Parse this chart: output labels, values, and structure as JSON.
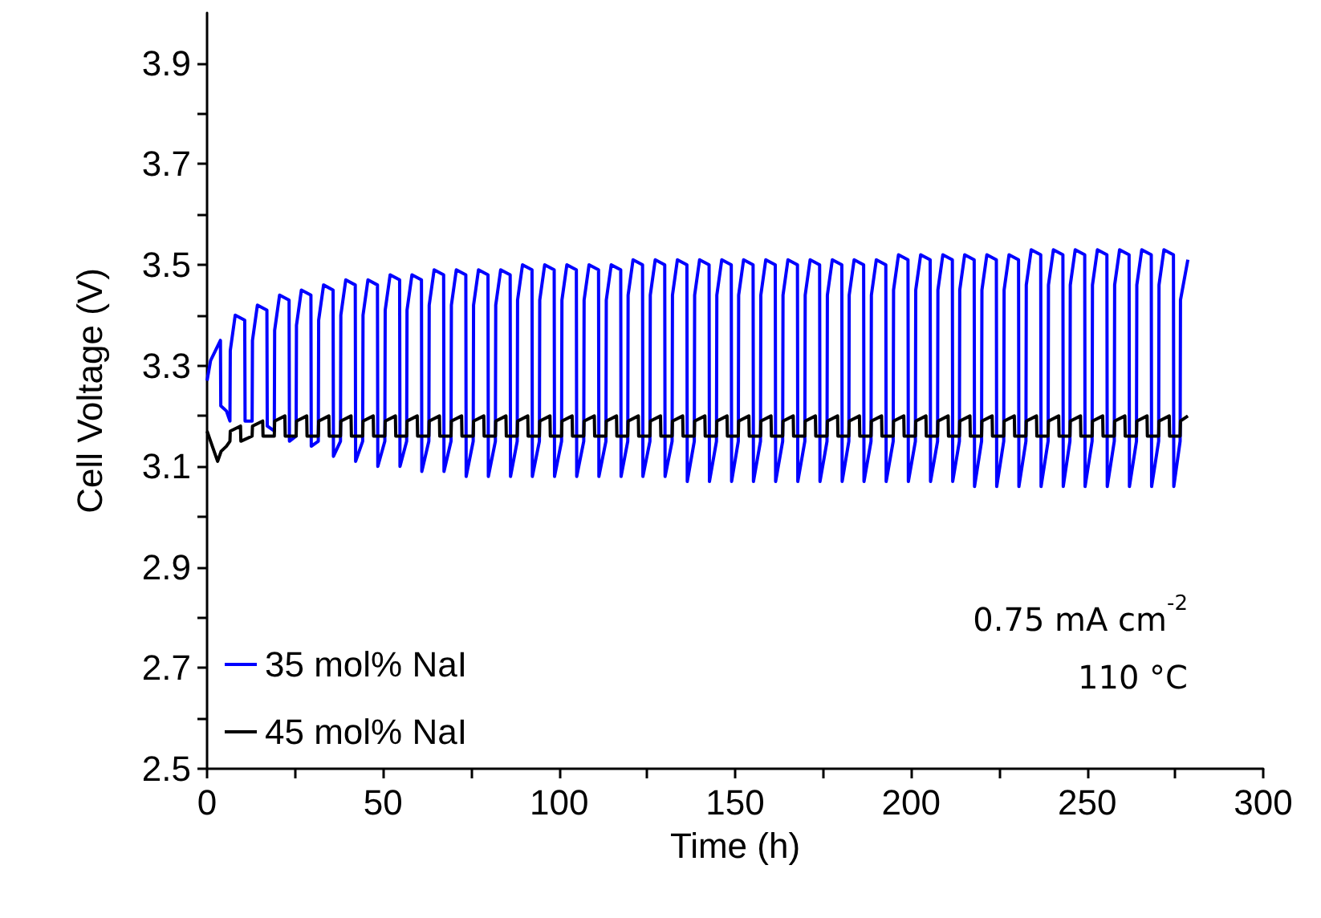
{
  "chart_data": {
    "type": "line",
    "xlabel": "Time (h)",
    "ylabel": "Cell Voltage (V)",
    "xlim": [
      0,
      300
    ],
    "ylim": [
      2.5,
      4.0
    ],
    "xticks": [
      0,
      {
        "value": 25,
        "label": null
      },
      50,
      {
        "value": 75,
        "label": null
      },
      100,
      {
        "value": 125,
        "label": null
      },
      150,
      {
        "value": 175,
        "label": null
      },
      200,
      {
        "value": 225,
        "label": null
      },
      250,
      {
        "value": 275,
        "label": null
      },
      300
    ],
    "yticks": [
      2.5,
      {
        "value": 2.6,
        "label": null
      },
      2.7,
      {
        "value": 2.8,
        "label": null
      },
      2.9,
      {
        "value": 3.0,
        "label": null
      },
      3.1,
      {
        "value": 3.2,
        "label": null
      },
      3.3,
      {
        "value": 3.4,
        "label": null
      },
      3.5,
      {
        "value": 3.6,
        "label": null
      },
      3.7,
      {
        "value": 3.8,
        "label": null
      },
      3.9
    ],
    "grid": false,
    "legend": "bottom left",
    "marker": "none",
    "line_style": "solid",
    "annotations": [
      "0.75 mA cm$^{-2}$",
      "110 °C"
    ],
    "series": [
      {
        "name": "35 mol% NaI",
        "color": "#0000ff",
        "x": [
          0,
          1,
          3.8,
          3.9,
          5.5,
          6.5,
          6.6,
          8.0,
          10.7,
          10.8,
          12.8,
          12.9,
          14.3,
          17.0,
          17.1,
          19.1,
          19.2,
          20.6,
          23.3,
          23.4,
          25.3,
          25.4,
          26.8,
          29.5,
          29.6,
          31.6,
          31.7,
          33.1,
          35.8,
          35.9,
          37.9,
          38.0,
          39.4,
          42.1,
          42.2,
          44.2,
          44.3,
          45.7,
          48.4,
          48.5,
          50.5,
          50.6,
          52.0,
          54.7,
          54.8,
          56.7,
          56.8,
          58.2,
          60.9,
          61.0,
          63.0,
          63.1,
          64.5,
          67.2,
          67.3,
          69.3,
          69.4,
          70.8,
          73.5,
          73.6,
          75.6,
          75.7,
          77.1,
          79.8,
          79.9,
          81.9,
          82.0,
          83.4,
          86.1,
          86.2,
          88.1,
          88.2,
          89.6,
          92.3,
          92.4,
          94.4,
          94.5,
          95.9,
          98.6,
          98.7,
          100.7,
          100.8,
          102.2,
          104.9,
          105.0,
          107.0,
          107.1,
          108.5,
          111.2,
          111.3,
          113.3,
          113.4,
          114.8,
          117.5,
          117.6,
          119.5,
          119.6,
          121.0,
          123.7,
          123.8,
          125.8,
          125.9,
          127.3,
          130.0,
          130.1,
          132.1,
          132.2,
          133.6,
          136.3,
          136.4,
          138.4,
          138.5,
          139.9,
          142.6,
          142.7,
          144.7,
          144.8,
          146.2,
          148.9,
          149.0,
          150.9,
          151.0,
          152.4,
          155.1,
          155.2,
          157.2,
          157.3,
          158.7,
          161.4,
          161.5,
          163.5,
          163.6,
          165.0,
          167.7,
          167.8,
          169.8,
          169.9,
          171.3,
          174.0,
          174.1,
          176.1,
          176.2,
          177.6,
          180.3,
          180.4,
          182.3,
          182.4,
          183.8,
          186.5,
          186.6,
          188.6,
          188.7,
          190.1,
          192.8,
          192.9,
          194.9,
          195.0,
          196.4,
          199.1,
          199.2,
          201.2,
          201.3,
          202.7,
          205.4,
          205.5,
          207.5,
          207.6,
          209.0,
          211.7,
          211.8,
          213.7,
          213.8,
          215.2,
          217.9,
          218.0,
          220.0,
          220.1,
          221.5,
          224.2,
          224.3,
          226.3,
          226.4,
          227.8,
          230.5,
          230.6,
          232.6,
          232.7,
          234.1,
          236.8,
          236.9,
          238.9,
          239.0,
          240.4,
          243.1,
          243.2,
          245.1,
          245.2,
          246.6,
          249.3,
          249.4,
          251.4,
          251.5,
          252.9,
          255.6,
          255.7,
          257.7,
          257.8,
          259.2,
          261.9,
          262.0,
          264.0,
          264.1,
          265.5,
          268.2,
          268.3,
          270.3,
          270.4,
          271.8,
          274.5,
          274.6,
          276.4,
          276.5,
          278.6
        ],
        "values": [
          3.27,
          3.31,
          3.35,
          3.22,
          3.21,
          3.19,
          3.33,
          3.4,
          3.39,
          3.19,
          3.19,
          3.35,
          3.42,
          3.41,
          3.18,
          3.17,
          3.37,
          3.44,
          3.43,
          3.15,
          3.16,
          3.38,
          3.45,
          3.44,
          3.14,
          3.15,
          3.39,
          3.46,
          3.45,
          3.12,
          3.15,
          3.4,
          3.47,
          3.46,
          3.11,
          3.15,
          3.4,
          3.47,
          3.46,
          3.1,
          3.15,
          3.41,
          3.48,
          3.47,
          3.1,
          3.15,
          3.41,
          3.48,
          3.47,
          3.09,
          3.15,
          3.42,
          3.49,
          3.48,
          3.09,
          3.15,
          3.42,
          3.49,
          3.48,
          3.08,
          3.15,
          3.42,
          3.49,
          3.48,
          3.08,
          3.15,
          3.42,
          3.49,
          3.48,
          3.08,
          3.15,
          3.43,
          3.5,
          3.49,
          3.08,
          3.15,
          3.43,
          3.5,
          3.49,
          3.08,
          3.15,
          3.43,
          3.5,
          3.49,
          3.08,
          3.15,
          3.43,
          3.5,
          3.49,
          3.08,
          3.15,
          3.43,
          3.5,
          3.49,
          3.08,
          3.15,
          3.44,
          3.51,
          3.5,
          3.08,
          3.15,
          3.44,
          3.51,
          3.5,
          3.08,
          3.15,
          3.44,
          3.51,
          3.5,
          3.07,
          3.15,
          3.44,
          3.51,
          3.5,
          3.07,
          3.15,
          3.44,
          3.51,
          3.5,
          3.07,
          3.15,
          3.44,
          3.51,
          3.5,
          3.07,
          3.15,
          3.44,
          3.51,
          3.5,
          3.07,
          3.15,
          3.44,
          3.51,
          3.5,
          3.07,
          3.15,
          3.44,
          3.51,
          3.5,
          3.07,
          3.15,
          3.44,
          3.51,
          3.5,
          3.07,
          3.15,
          3.44,
          3.51,
          3.5,
          3.07,
          3.15,
          3.44,
          3.51,
          3.5,
          3.07,
          3.15,
          3.45,
          3.52,
          3.51,
          3.07,
          3.15,
          3.45,
          3.52,
          3.51,
          3.07,
          3.15,
          3.45,
          3.52,
          3.51,
          3.07,
          3.15,
          3.45,
          3.52,
          3.51,
          3.06,
          3.15,
          3.45,
          3.52,
          3.51,
          3.06,
          3.15,
          3.45,
          3.52,
          3.51,
          3.06,
          3.15,
          3.46,
          3.53,
          3.52,
          3.06,
          3.15,
          3.46,
          3.53,
          3.52,
          3.06,
          3.15,
          3.46,
          3.53,
          3.52,
          3.06,
          3.15,
          3.46,
          3.53,
          3.52,
          3.06,
          3.15,
          3.46,
          3.53,
          3.52,
          3.06,
          3.15,
          3.46,
          3.53,
          3.52,
          3.06,
          3.15,
          3.46,
          3.53,
          3.52,
          3.06,
          3.15,
          3.43,
          3.51
        ]
      },
      {
        "name": "45 mol% NaI",
        "color": "#000000",
        "x": [
          0,
          1,
          3,
          4,
          5.5,
          6.5,
          6.6,
          9.5,
          9.6,
          12.8,
          12.9,
          15.8,
          15.9,
          19.1,
          19.2,
          22.1,
          22.2,
          25.3,
          25.4,
          28.3,
          28.4,
          31.6,
          31.7,
          34.6,
          34.7,
          37.9,
          38.0,
          40.9,
          41.0,
          44.2,
          44.3,
          47.2,
          47.3,
          50.5,
          50.6,
          53.5,
          53.6,
          56.7,
          56.8,
          59.7,
          59.8,
          63.0,
          63.1,
          66.0,
          66.1,
          69.3,
          69.4,
          72.3,
          72.4,
          75.6,
          75.7,
          78.6,
          78.7,
          81.9,
          82.0,
          84.9,
          85.0,
          88.1,
          88.2,
          91.1,
          91.2,
          94.4,
          94.5,
          97.4,
          97.5,
          100.7,
          100.8,
          103.7,
          103.8,
          107.0,
          107.1,
          110.0,
          110.1,
          113.3,
          113.4,
          116.3,
          116.4,
          119.5,
          119.6,
          122.5,
          122.6,
          125.8,
          125.9,
          128.8,
          128.9,
          132.1,
          132.2,
          135.1,
          135.2,
          138.4,
          138.5,
          141.4,
          141.5,
          144.7,
          144.8,
          147.7,
          147.8,
          150.9,
          151.0,
          153.9,
          154.0,
          157.2,
          157.3,
          160.2,
          160.3,
          163.5,
          163.6,
          166.5,
          166.6,
          169.8,
          169.9,
          172.8,
          172.9,
          176.1,
          176.2,
          179.1,
          179.2,
          182.3,
          182.4,
          185.3,
          185.4,
          188.6,
          188.7,
          191.6,
          191.7,
          194.9,
          195.0,
          197.9,
          198.0,
          201.2,
          201.3,
          204.2,
          204.3,
          207.5,
          207.6,
          210.5,
          210.6,
          213.7,
          213.8,
          216.7,
          216.8,
          220.0,
          220.1,
          223.0,
          223.1,
          226.3,
          226.4,
          229.3,
          229.4,
          232.6,
          232.7,
          235.6,
          235.7,
          238.9,
          239.0,
          241.9,
          242.0,
          245.1,
          245.2,
          248.1,
          248.2,
          251.4,
          251.5,
          254.4,
          254.5,
          257.7,
          257.8,
          260.7,
          260.8,
          264.0,
          264.1,
          267.0,
          267.1,
          270.3,
          270.4,
          273.3,
          273.4,
          276.4,
          276.5,
          278.6
        ],
        "values": [
          3.17,
          3.15,
          3.11,
          3.13,
          3.14,
          3.15,
          3.17,
          3.18,
          3.15,
          3.16,
          3.18,
          3.19,
          3.16,
          3.16,
          3.19,
          3.2,
          3.16,
          3.16,
          3.19,
          3.2,
          3.16,
          3.16,
          3.19,
          3.2,
          3.16,
          3.16,
          3.19,
          3.2,
          3.16,
          3.16,
          3.19,
          3.2,
          3.16,
          3.16,
          3.19,
          3.2,
          3.16,
          3.16,
          3.19,
          3.2,
          3.16,
          3.16,
          3.19,
          3.2,
          3.16,
          3.16,
          3.19,
          3.2,
          3.16,
          3.16,
          3.19,
          3.2,
          3.16,
          3.16,
          3.19,
          3.2,
          3.16,
          3.16,
          3.19,
          3.2,
          3.16,
          3.16,
          3.19,
          3.2,
          3.16,
          3.16,
          3.19,
          3.2,
          3.16,
          3.16,
          3.19,
          3.2,
          3.16,
          3.16,
          3.19,
          3.2,
          3.16,
          3.16,
          3.19,
          3.2,
          3.16,
          3.16,
          3.19,
          3.2,
          3.16,
          3.16,
          3.19,
          3.2,
          3.16,
          3.16,
          3.19,
          3.2,
          3.16,
          3.16,
          3.19,
          3.2,
          3.16,
          3.16,
          3.19,
          3.2,
          3.16,
          3.16,
          3.19,
          3.2,
          3.16,
          3.16,
          3.19,
          3.2,
          3.16,
          3.16,
          3.19,
          3.2,
          3.16,
          3.16,
          3.19,
          3.2,
          3.16,
          3.16,
          3.19,
          3.2,
          3.16,
          3.16,
          3.19,
          3.2,
          3.16,
          3.16,
          3.19,
          3.2,
          3.16,
          3.16,
          3.19,
          3.2,
          3.16,
          3.16,
          3.19,
          3.2,
          3.16,
          3.16,
          3.19,
          3.2,
          3.16,
          3.16,
          3.19,
          3.2,
          3.16,
          3.16,
          3.19,
          3.2,
          3.16,
          3.16,
          3.19,
          3.2,
          3.16,
          3.16,
          3.19,
          3.2,
          3.16,
          3.16,
          3.19,
          3.2,
          3.16,
          3.16,
          3.19,
          3.2,
          3.16,
          3.16,
          3.19,
          3.2,
          3.16,
          3.16,
          3.19,
          3.2,
          3.16,
          3.16,
          3.19,
          3.2,
          3.16,
          3.16,
          3.19,
          3.2
        ]
      }
    ]
  }
}
